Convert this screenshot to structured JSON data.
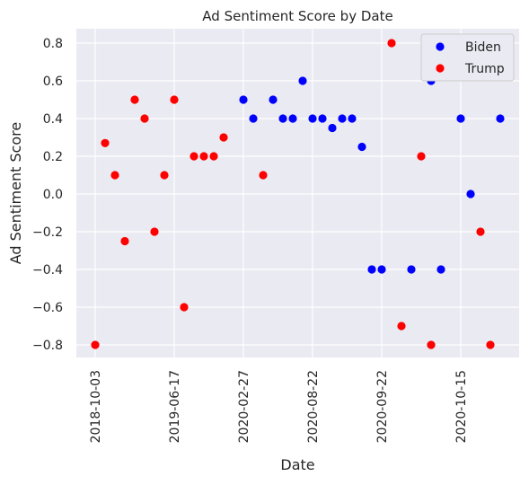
{
  "chart_data": {
    "type": "scatter",
    "title": "Ad Sentiment Score by Date",
    "xlabel": "Date",
    "ylabel": "Ad Sentiment Score",
    "ylim": [
      -0.88,
      0.88
    ],
    "y_ticks": [
      0.8,
      0.6,
      0.4,
      0.2,
      0.0,
      -0.2,
      -0.4,
      -0.6,
      -0.8
    ],
    "y_tick_labels": [
      "0.8",
      "0.6",
      "0.4",
      "0.2",
      "0.0",
      "−0.2",
      "−0.4",
      "−0.6",
      "−0.8"
    ],
    "x_axis_kind": "categorical dates (evenly spaced, in date order)",
    "categories": [
      "2018-10-03",
      "2018-10-13",
      "2018-11-07",
      "2018-12-05",
      "2019-01-20",
      "2019-03-01",
      "2019-04-10",
      "2019-05-15",
      "2019-06-17",
      "2019-07-20",
      "2019-09-01",
      "2019-10-15",
      "2019-11-20",
      "2020-01-10",
      "2020-02-01",
      "2020-02-27",
      "2020-03-15",
      "2020-04-10",
      "2020-05-05",
      "2020-06-01",
      "2020-07-01",
      "2020-08-01",
      "2020-08-22",
      "2020-08-30",
      "2020-09-04",
      "2020-09-08",
      "2020-09-12",
      "2020-09-16",
      "2020-09-19",
      "2020-09-22",
      "2020-09-25",
      "2020-09-28",
      "2020-10-01",
      "2020-10-05",
      "2020-10-08",
      "2020-10-11",
      "2020-10-13",
      "2020-10-15",
      "2020-10-18",
      "2020-10-21",
      "2020-10-24",
      "2020-10-27"
    ],
    "x_tick_labels": [
      "2018-10-03",
      "2019-06-17",
      "2020-02-27",
      "2020-08-22",
      "2020-09-22",
      "2020-10-15"
    ],
    "series": [
      {
        "name": "Biden",
        "color": "#0000ff",
        "points": [
          {
            "x": "2020-02-27",
            "y": 0.5
          },
          {
            "x": "2020-03-15",
            "y": 0.4
          },
          {
            "x": "2020-05-05",
            "y": 0.5
          },
          {
            "x": "2020-06-01",
            "y": 0.4
          },
          {
            "x": "2020-07-01",
            "y": 0.4
          },
          {
            "x": "2020-08-01",
            "y": 0.6
          },
          {
            "x": "2020-08-22",
            "y": 0.4
          },
          {
            "x": "2020-08-30",
            "y": 0.4
          },
          {
            "x": "2020-09-04",
            "y": 0.35
          },
          {
            "x": "2020-09-08",
            "y": 0.4
          },
          {
            "x": "2020-09-12",
            "y": 0.4
          },
          {
            "x": "2020-09-16",
            "y": 0.25
          },
          {
            "x": "2020-09-19",
            "y": -0.4
          },
          {
            "x": "2020-09-22",
            "y": -0.4
          },
          {
            "x": "2020-10-01",
            "y": -0.4
          },
          {
            "x": "2020-10-08",
            "y": 0.6
          },
          {
            "x": "2020-10-11",
            "y": -0.4
          },
          {
            "x": "2020-10-15",
            "y": 0.4
          },
          {
            "x": "2020-10-18",
            "y": 0.0
          },
          {
            "x": "2020-10-27",
            "y": 0.4
          }
        ]
      },
      {
        "name": "Trump",
        "color": "#ff0000",
        "points": [
          {
            "x": "2018-10-03",
            "y": -0.8
          },
          {
            "x": "2018-10-13",
            "y": 0.27
          },
          {
            "x": "2018-11-07",
            "y": 0.1
          },
          {
            "x": "2018-12-05",
            "y": -0.25
          },
          {
            "x": "2019-01-20",
            "y": 0.5
          },
          {
            "x": "2019-03-01",
            "y": 0.4
          },
          {
            "x": "2019-04-10",
            "y": -0.2
          },
          {
            "x": "2019-05-15",
            "y": 0.1
          },
          {
            "x": "2019-06-17",
            "y": 0.5
          },
          {
            "x": "2019-07-20",
            "y": -0.6
          },
          {
            "x": "2019-09-01",
            "y": 0.2
          },
          {
            "x": "2019-10-15",
            "y": 0.2
          },
          {
            "x": "2019-11-20",
            "y": 0.2
          },
          {
            "x": "2020-01-10",
            "y": 0.3
          },
          {
            "x": "2020-04-10",
            "y": 0.1
          },
          {
            "x": "2020-09-25",
            "y": 0.8
          },
          {
            "x": "2020-09-28",
            "y": -0.7
          },
          {
            "x": "2020-10-05",
            "y": 0.2
          },
          {
            "x": "2020-10-08",
            "y": -0.8
          },
          {
            "x": "2020-10-21",
            "y": -0.2
          },
          {
            "x": "2020-10-24",
            "y": -0.8
          }
        ]
      }
    ],
    "legend": {
      "placement": "top-right",
      "entries": [
        "Biden",
        "Trump"
      ]
    },
    "grid": true,
    "background_color": "#eaeaf2",
    "grid_color": "#ffffff"
  }
}
